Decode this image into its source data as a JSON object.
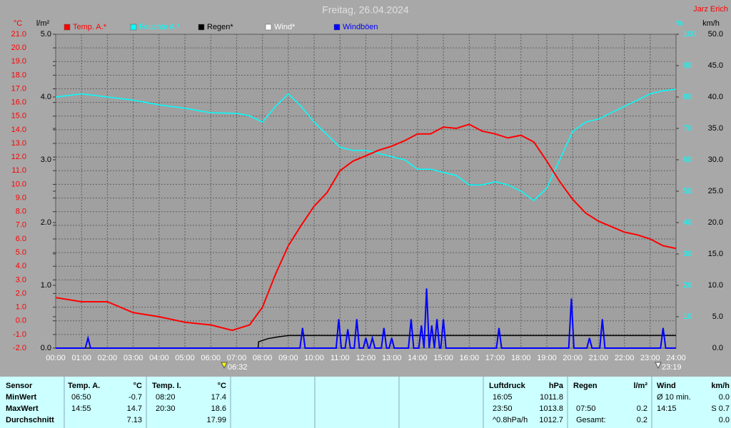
{
  "chart_data": {
    "type": "line",
    "title": "Freitag, 26.04.2024",
    "author": "Jarz Erich",
    "y_label": "°C",
    "y2_label": "l/m²",
    "y3_label": "%",
    "y4_label": "km/h",
    "grid": true,
    "xlim": [
      0,
      24
    ],
    "xticks": [
      {
        "value": 0,
        "label": "00:00"
      },
      {
        "value": 1,
        "label": "01:00"
      },
      {
        "value": 2,
        "label": "02:00"
      },
      {
        "value": 3,
        "label": "03:00"
      },
      {
        "value": 4,
        "label": "04:00"
      },
      {
        "value": 5,
        "label": "05:00"
      },
      {
        "value": 6,
        "label": "06:00"
      },
      {
        "value": 7,
        "label": "07:00"
      },
      {
        "value": 8,
        "label": "08:00"
      },
      {
        "value": 9,
        "label": "09:00"
      },
      {
        "value": 10,
        "label": "10:00"
      },
      {
        "value": 11,
        "label": "11:00"
      },
      {
        "value": 12,
        "label": "12:00"
      },
      {
        "value": 13,
        "label": "13:00"
      },
      {
        "value": 14,
        "label": "14:00"
      },
      {
        "value": 15,
        "label": "15:00"
      },
      {
        "value": 16,
        "label": "16:00"
      },
      {
        "value": 17,
        "label": "17:00"
      },
      {
        "value": 18,
        "label": "18:00"
      },
      {
        "value": 19,
        "label": "19:00"
      },
      {
        "value": 20,
        "label": "20:00"
      },
      {
        "value": 21,
        "label": "21:00"
      },
      {
        "value": 22,
        "label": "22:00"
      },
      {
        "value": 23,
        "label": "23:00"
      },
      {
        "value": 24,
        "label": "24:00"
      }
    ],
    "ylim": [
      -2,
      21
    ],
    "yticks": [
      {
        "value": -2,
        "label": "-2.0"
      },
      {
        "value": -1,
        "label": "-1.0"
      },
      {
        "value": 0,
        "label": "0.0"
      },
      {
        "value": 1,
        "label": "1.0"
      },
      {
        "value": 2,
        "label": "2.0"
      },
      {
        "value": 3,
        "label": "3.0"
      },
      {
        "value": 4,
        "label": "4.0"
      },
      {
        "value": 5,
        "label": "5.0"
      },
      {
        "value": 6,
        "label": "6.0"
      },
      {
        "value": 7,
        "label": "7.0"
      },
      {
        "value": 8,
        "label": "8.0"
      },
      {
        "value": 9,
        "label": "9.0"
      },
      {
        "value": 10,
        "label": "10.0"
      },
      {
        "value": 11,
        "label": "11.0"
      },
      {
        "value": 12,
        "label": "12.0"
      },
      {
        "value": 13,
        "label": "13.0"
      },
      {
        "value": 14,
        "label": "14.0"
      },
      {
        "value": 15,
        "label": "15.0"
      },
      {
        "value": 16,
        "label": "16.0"
      },
      {
        "value": 17,
        "label": "17.0"
      },
      {
        "value": 18,
        "label": "18.0"
      },
      {
        "value": 19,
        "label": "19.0"
      },
      {
        "value": 20,
        "label": "20.0"
      },
      {
        "value": 21,
        "label": "21.0"
      }
    ],
    "y2lim": [
      0,
      5
    ],
    "y2ticks": [
      {
        "value": 0,
        "label": "0.0"
      },
      {
        "value": 1,
        "label": "1.0"
      },
      {
        "value": 2,
        "label": "2.0"
      },
      {
        "value": 3,
        "label": "3.0"
      },
      {
        "value": 4,
        "label": "4.0"
      },
      {
        "value": 5,
        "label": "5.0"
      }
    ],
    "y3lim": [
      0,
      100
    ],
    "y3ticks": [
      10,
      20,
      30,
      40,
      50,
      60,
      70,
      80,
      90,
      100
    ],
    "y4lim": [
      0,
      50
    ],
    "y4ticks": [
      {
        "value": 0,
        "label": "0.0"
      },
      {
        "value": 5,
        "label": "5.0"
      },
      {
        "value": 10,
        "label": "10.0"
      },
      {
        "value": 15,
        "label": "15.0"
      },
      {
        "value": 20,
        "label": "20.0"
      },
      {
        "value": 25,
        "label": "25.0"
      },
      {
        "value": 30,
        "label": "30.0"
      },
      {
        "value": 35,
        "label": "35.0"
      },
      {
        "value": 40,
        "label": "40.0"
      },
      {
        "value": 45,
        "label": "45.0"
      },
      {
        "value": 50,
        "label": "50.0"
      }
    ],
    "series": [
      {
        "name": "Temp. A.*",
        "color": "#ff0000",
        "axis": "y",
        "x": [
          0,
          1,
          2,
          3,
          4,
          5,
          6,
          6.83,
          7.5,
          8,
          8.5,
          9,
          9.5,
          10,
          10.5,
          11,
          11.5,
          12,
          12.5,
          13,
          13.5,
          14,
          14.5,
          15,
          15.5,
          16,
          16.5,
          17,
          17.5,
          18,
          18.5,
          19,
          19.5,
          20,
          20.5,
          21,
          21.5,
          22,
          22.5,
          23,
          23.5,
          24
        ],
        "values": [
          1.7,
          1.4,
          1.4,
          0.6,
          0.3,
          -0.1,
          -0.3,
          -0.7,
          -0.3,
          1.0,
          3.4,
          5.5,
          7.0,
          8.4,
          9.4,
          11.0,
          11.7,
          12.1,
          12.5,
          12.8,
          13.2,
          13.7,
          13.7,
          14.2,
          14.1,
          14.4,
          13.9,
          13.7,
          13.4,
          13.6,
          13.1,
          11.7,
          10.2,
          8.9,
          7.9,
          7.3,
          6.9,
          6.5,
          6.3,
          6.0,
          5.5,
          5.3
        ]
      },
      {
        "name": "Feuchte A.*",
        "color": "#00ffff",
        "axis": "y3",
        "x": [
          0,
          1,
          2,
          3,
          4,
          5,
          6,
          7,
          7.5,
          8,
          8.5,
          9,
          9.5,
          10,
          10.5,
          11,
          11.5,
          12,
          12.5,
          13,
          13.5,
          14,
          14.5,
          15,
          15.5,
          16,
          16.5,
          17,
          17.5,
          18,
          18.5,
          19,
          19.5,
          20,
          20.5,
          21,
          21.5,
          22,
          22.5,
          23,
          23.5,
          24
        ],
        "values": [
          80,
          81,
          80,
          79,
          77.5,
          76.4,
          75,
          74.8,
          74,
          72,
          77,
          81,
          77,
          72,
          68,
          64,
          63,
          63,
          62,
          61,
          60,
          57,
          57,
          56,
          55,
          52,
          52,
          53,
          52,
          50,
          47,
          51,
          60,
          69,
          72,
          73,
          75,
          77,
          79,
          81,
          82,
          82.5
        ]
      },
      {
        "name": "Regen*",
        "color": "#000000",
        "axis": "y2",
        "x": [
          0,
          7.83,
          7.85,
          8.2,
          8.6,
          9,
          24
        ],
        "values": [
          0,
          0,
          0.1,
          0.15,
          0.18,
          0.2,
          0.2
        ]
      },
      {
        "name": "Wind*",
        "color": "#ffffff",
        "axis": "y4"
      },
      {
        "name": "Windböen",
        "color": "#0000ff",
        "axis": "y4",
        "x": [
          0,
          1.15,
          1.25,
          1.35,
          9.45,
          9.55,
          9.65,
          10.85,
          10.95,
          11.05,
          11.2,
          11.3,
          11.4,
          11.55,
          11.65,
          11.75,
          11.9,
          12.0,
          12.1,
          12.15,
          12.25,
          12.35,
          12.6,
          12.7,
          12.8,
          12.9,
          13.0,
          13.1,
          13.65,
          13.75,
          13.85,
          14.05,
          14.15,
          14.25,
          14.35,
          14.45,
          14.55,
          14.65,
          14.75,
          14.85,
          14.9,
          15.0,
          15.1,
          17.05,
          17.15,
          17.25,
          19.85,
          19.95,
          20.05,
          20.55,
          20.65,
          20.75,
          21.05,
          21.15,
          21.25,
          23.4,
          23.5,
          23.6,
          24
        ],
        "values": [
          0,
          0,
          1.6,
          0,
          0,
          3.2,
          0,
          0,
          4.6,
          0,
          0,
          3.0,
          0,
          0,
          4.6,
          0,
          0,
          1.6,
          0,
          0,
          1.6,
          0,
          0,
          3.2,
          0,
          0,
          1.6,
          0,
          0,
          4.6,
          0,
          0,
          3.6,
          0,
          9.5,
          0,
          3.6,
          0,
          4.6,
          0,
          0,
          4.6,
          0,
          0,
          3.2,
          0,
          0,
          7.9,
          0,
          0,
          1.6,
          0,
          0,
          4.6,
          0,
          0,
          3.2,
          0,
          0
        ]
      }
    ],
    "annotations": [
      {
        "text": "06:32"
      },
      {
        "text": "23:19"
      }
    ]
  },
  "table": {
    "columns": [
      {
        "header": "Sensor",
        "rows": [
          "MinWert",
          "MaxWert",
          "Durchschnitt"
        ]
      },
      {
        "header": "Temp. A.",
        "unit": "°C",
        "rows": [
          [
            "06:50",
            "-0.7"
          ],
          [
            "14:55",
            "14.7"
          ],
          [
            null,
            "7.13"
          ]
        ]
      },
      {
        "header": "Temp. I.",
        "unit": "°C",
        "rows": [
          [
            "08:20",
            "17.4"
          ],
          [
            "20:30",
            "18.6"
          ],
          [
            null,
            "17.99"
          ]
        ]
      },
      {
        "header": "Luftdruck",
        "unit": "hPa",
        "rows": [
          [
            "16:05",
            "1011.8"
          ],
          [
            "23:50",
            "1013.8"
          ],
          [
            "^0.8hPa/h",
            "1012.7"
          ]
        ]
      },
      {
        "header": "Regen",
        "unit": "l/m²",
        "rows": [
          [
            null,
            null
          ],
          [
            "07:50",
            "0.2"
          ],
          [
            "Gesamt:",
            "0.2"
          ]
        ]
      },
      {
        "header": "Wind",
        "unit": "km/h",
        "rows": [
          [
            "Ø 10 min.",
            "0.0"
          ],
          [
            "14:15",
            "S 0.7"
          ],
          [
            null,
            "0.0"
          ]
        ]
      }
    ]
  }
}
